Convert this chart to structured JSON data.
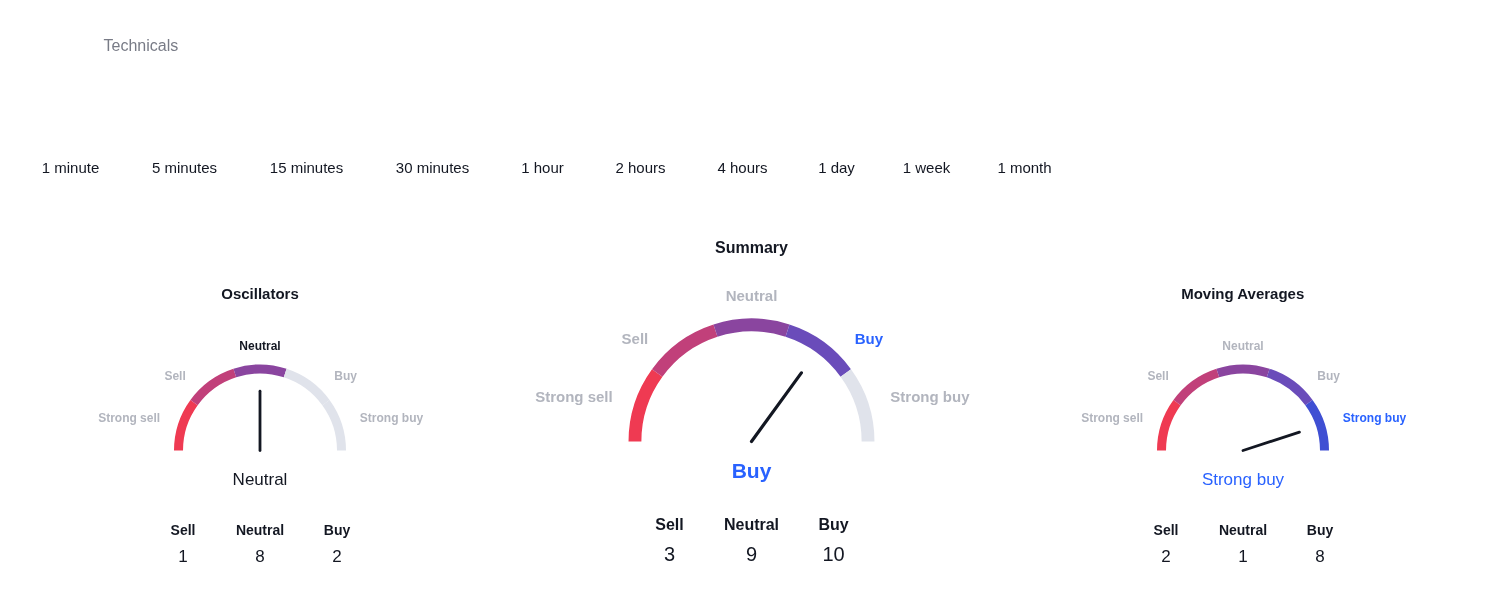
{
  "chart_data": [
    {
      "type": "other",
      "title": "Technicals",
      "annotations": [
        "1 minute",
        "5 minutes",
        "15 minutes",
        "30 minutes",
        "1 hour",
        "2 hours",
        "4 hours",
        "1 day",
        "1 week",
        "1 month"
      ]
    },
    {
      "type": "donut",
      "title": "Oscillators",
      "categories": [
        "Strong sell",
        "Sell",
        "Neutral",
        "Buy",
        "Strong buy"
      ],
      "values": [
        20,
        20,
        20,
        20,
        20
      ],
      "colors": [
        "#ef3a52",
        "#c1407a",
        "#8a459f",
        "#e0e3eb",
        "#e0e3eb"
      ],
      "needle": "Neutral"
    },
    {
      "type": "other",
      "categories": [
        "Sell",
        "Neutral",
        "Buy"
      ],
      "values": [
        1,
        8,
        2
      ],
      "data_labels": true
    },
    {
      "type": "donut",
      "title": "Summary",
      "categories": [
        "Strong sell",
        "Sell",
        "Neutral",
        "Buy",
        "Strong buy"
      ],
      "values": [
        20,
        20,
        20,
        20,
        20
      ],
      "colors": [
        "#ef3a52",
        "#c1407a",
        "#8a459f",
        "#6a4cba",
        "#e0e3eb"
      ],
      "needle": "Buy"
    },
    {
      "type": "other",
      "categories": [
        "Sell",
        "Neutral",
        "Buy"
      ],
      "values": [
        3,
        9,
        10
      ],
      "data_labels": true
    },
    {
      "type": "donut",
      "title": "Moving Averages",
      "categories": [
        "Strong sell",
        "Sell",
        "Neutral",
        "Buy",
        "Strong buy"
      ],
      "values": [
        20,
        20,
        20,
        20,
        20
      ],
      "colors": [
        "#ef3a52",
        "#c1407a",
        "#8a459f",
        "#6a4cba",
        "#3f4fd3"
      ],
      "needle": "Strong buy"
    },
    {
      "type": "other",
      "categories": [
        "Sell",
        "Neutral",
        "Buy"
      ],
      "values": [
        2,
        1,
        8
      ],
      "data_labels": true
    }
  ]
}
